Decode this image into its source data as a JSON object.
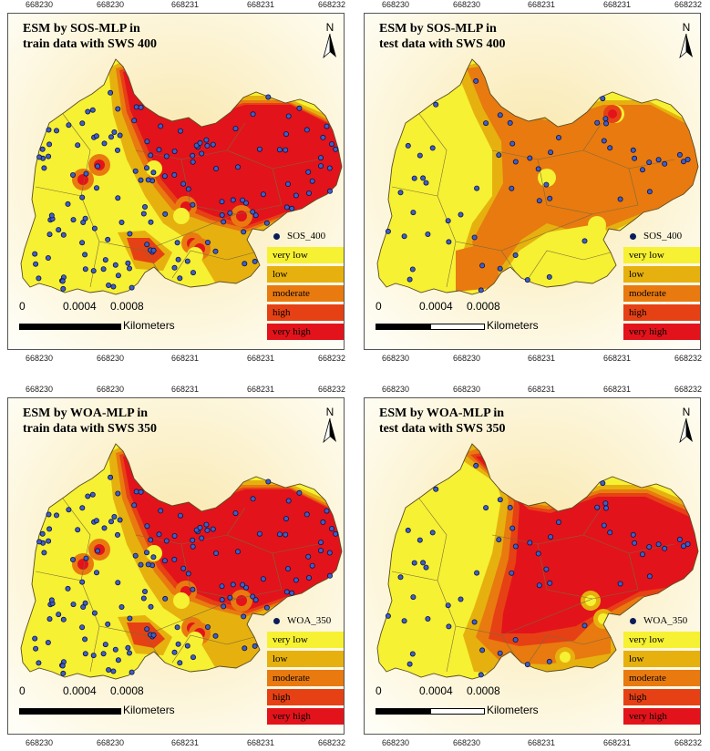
{
  "ticks": [
    "668230",
    "668230",
    "668231",
    "668231",
    "668232"
  ],
  "legend_classes": [
    {
      "label": "very low",
      "color": "#f6f133"
    },
    {
      "label": "low",
      "color": "#e6b10e"
    },
    {
      "label": "moderate",
      "color": "#e87a10"
    },
    {
      "label": "high",
      "color": "#e64114"
    },
    {
      "label": "very high",
      "color": "#e3131b"
    }
  ],
  "scale": {
    "n0": "0",
    "n1": "0.0004",
    "n2": "0.0008",
    "unit": "Kilometers"
  },
  "north_label": "N",
  "panels": [
    {
      "title_line1": "ESM by SOS-MLP in",
      "title_line2": "train data with SWS 400",
      "points_label": "SOS_400",
      "variant": "train_sos"
    },
    {
      "title_line1": "ESM by SOS-MLP in",
      "title_line2": "test data with SWS 400",
      "points_label": "SOS_400",
      "variant": "test_sos"
    },
    {
      "title_line1": "ESM by WOA-MLP in",
      "title_line2": "train data with SWS 350",
      "points_label": "WOA_350",
      "variant": "train_woa"
    },
    {
      "title_line1": "ESM by WOA-MLP in",
      "title_line2": "test data with SWS 350",
      "points_label": "WOA_350",
      "variant": "test_woa"
    }
  ]
}
